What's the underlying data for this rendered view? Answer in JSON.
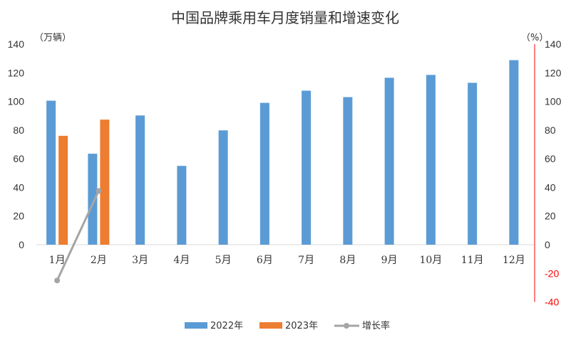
{
  "chart_data": {
    "type": "bar",
    "title": "中国品牌乘用车月度销量和增速变化",
    "y_left_unit": "（万辆）",
    "y_right_unit": "（%）",
    "ylim_left": [
      0,
      140
    ],
    "ylim_right": [
      -40,
      140
    ],
    "y_left_ticks": [
      "0",
      "20",
      "40",
      "60",
      "80",
      "100",
      "120",
      "140"
    ],
    "y_right_ticks": [
      "-40",
      "-20",
      "0",
      "20",
      "40",
      "60",
      "80",
      "100",
      "120",
      "140"
    ],
    "categories": [
      "1月",
      "2月",
      "3月",
      "4月",
      "5月",
      "6月",
      "7月",
      "8月",
      "9月",
      "10月",
      "11月",
      "12月"
    ],
    "series": [
      {
        "name": "2022年",
        "type": "bar",
        "axis": "left",
        "color": "#5b9bd5",
        "values": [
          100.5,
          63.5,
          90.2,
          55.0,
          79.8,
          99.0,
          107.5,
          103.0,
          116.5,
          118.5,
          113.0,
          128.8
        ]
      },
      {
        "name": "2023年",
        "type": "bar",
        "axis": "left",
        "color": "#ed7d31",
        "values": [
          76.0,
          87.3,
          null,
          null,
          null,
          null,
          null,
          null,
          null,
          null,
          null,
          null
        ]
      },
      {
        "name": "增长率",
        "type": "line",
        "axis": "right",
        "color": "#a5a5a5",
        "values": [
          -25,
          37.5,
          null,
          null,
          null,
          null,
          null,
          null,
          null,
          null,
          null,
          null
        ]
      }
    ],
    "grid": false,
    "legend_position": "bottom"
  }
}
